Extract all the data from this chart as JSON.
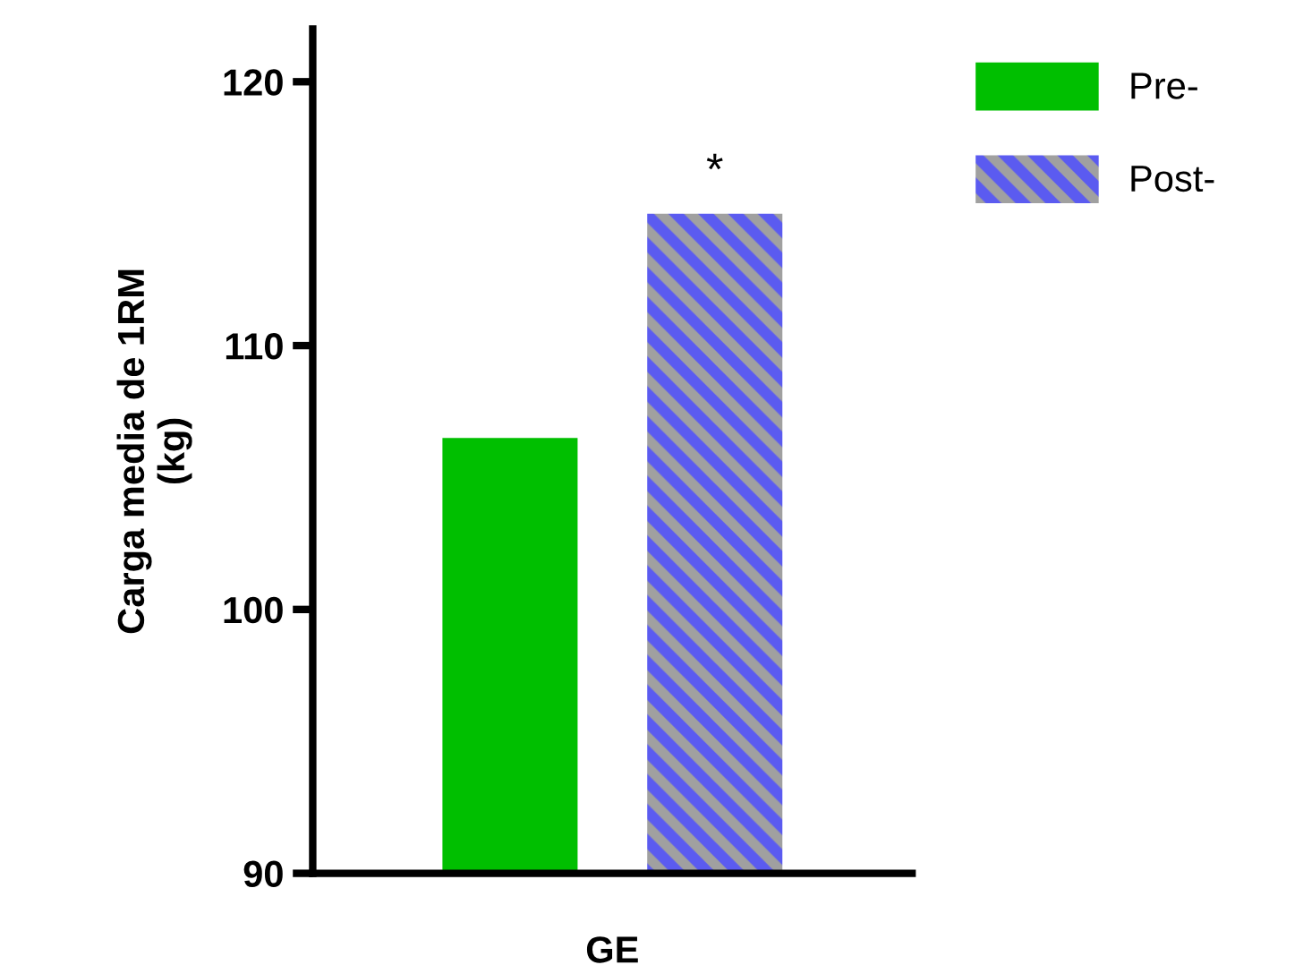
{
  "chart_data": {
    "type": "bar",
    "ylabel": "Carga media de 1RM\n(kg)",
    "categories": [
      "GE"
    ],
    "series": [
      {
        "name": "Pre-",
        "color": "#00bf00",
        "values": [
          106.5
        ]
      },
      {
        "name": "Post-",
        "color": "#5b5bf0",
        "values": [
          115.0
        ]
      }
    ],
    "ylim": [
      90,
      122
    ],
    "yticks": [
      90,
      100,
      110,
      120
    ],
    "grid": false,
    "legend": "top right",
    "annotations": [
      "*"
    ]
  }
}
